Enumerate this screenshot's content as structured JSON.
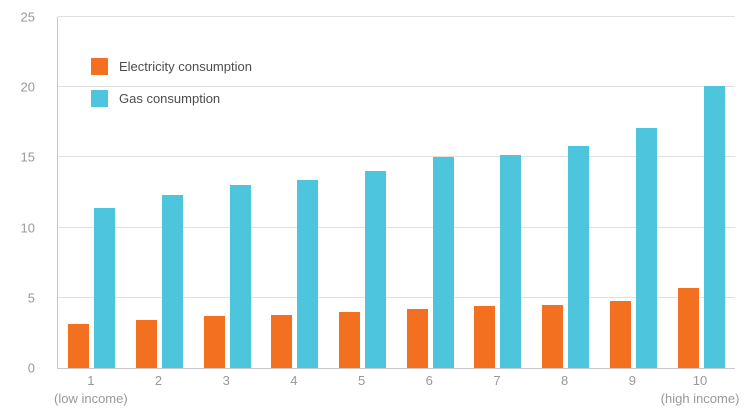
{
  "chart_data": {
    "type": "bar",
    "title": "",
    "xlabel": "",
    "ylabel": "",
    "categories": [
      "1",
      "2",
      "3",
      "4",
      "5",
      "6",
      "7",
      "8",
      "9",
      "10"
    ],
    "x_sublabels": {
      "first": "(low income)",
      "last": "(high income)"
    },
    "series": [
      {
        "name": "Electricity consumption",
        "color": "#f37021",
        "values": [
          3.1,
          3.4,
          3.7,
          3.8,
          4.0,
          4.2,
          4.4,
          4.5,
          4.75,
          5.7
        ]
      },
      {
        "name": "Gas consumption",
        "color": "#4dc6dd",
        "values": [
          11.4,
          12.3,
          13.0,
          13.4,
          14.0,
          15.0,
          15.2,
          15.8,
          17.1,
          20.1
        ]
      }
    ],
    "ylim": [
      0,
      25
    ],
    "yticks": [
      0,
      5,
      10,
      15,
      20,
      25
    ],
    "grid": true,
    "legend_position": "top-left"
  }
}
